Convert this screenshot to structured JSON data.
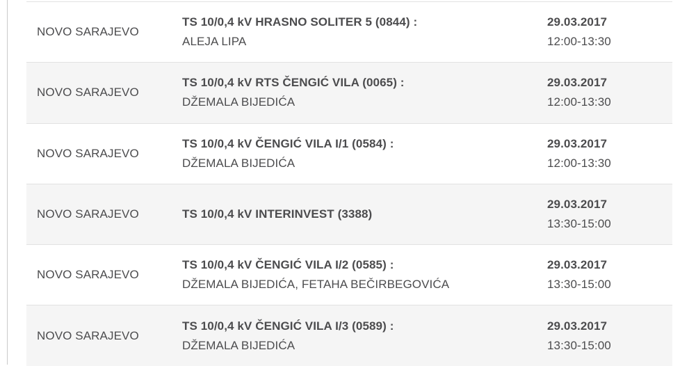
{
  "colors": {
    "text": "#4c4c4e",
    "alt_row_bg": "#f5f5f5",
    "row_border": "#e2e2e2",
    "left_rule": "#c9c9c9"
  },
  "table": {
    "rows": [
      {
        "municipality": "NOVO SARAJEVO",
        "station": "TS 10/0,4 kV HRASNO SOLITER 5 (0844) :",
        "streets": "ALEJA LIPA",
        "date": "29.03.2017",
        "time": "12:00-13:30"
      },
      {
        "municipality": "NOVO SARAJEVO",
        "station": "TS 10/0,4 kV RTS ČENGIĆ VILA (0065) :",
        "streets": "DŽEMALA BIJEDIĆA",
        "date": "29.03.2017",
        "time": "12:00-13:30"
      },
      {
        "municipality": "NOVO SARAJEVO",
        "station": "TS 10/0,4 kV ČENGIĆ VILA I/1 (0584) :",
        "streets": "DŽEMALA BIJEDIĆA",
        "date": "29.03.2017",
        "time": "12:00-13:30"
      },
      {
        "municipality": "NOVO SARAJEVO",
        "station": "TS 10/0,4 kV INTERINVEST (3388)",
        "date": "29.03.2017",
        "time": "13:30-15:00"
      },
      {
        "municipality": "NOVO SARAJEVO",
        "station": "TS 10/0,4 kV ČENGIĆ VILA I/2 (0585) :",
        "streets": "DŽEMALA BIJEDIĆA, FETAHA BEČIRBEGOVIĆA",
        "date": "29.03.2017",
        "time": "13:30-15:00"
      },
      {
        "municipality": "NOVO SARAJEVO",
        "station": "TS 10/0,4 kV ČENGIĆ VILA I/3 (0589) :",
        "streets": "DŽEMALA BIJEDIĆA",
        "date": "29.03.2017",
        "time": "13:30-15:00"
      }
    ]
  }
}
